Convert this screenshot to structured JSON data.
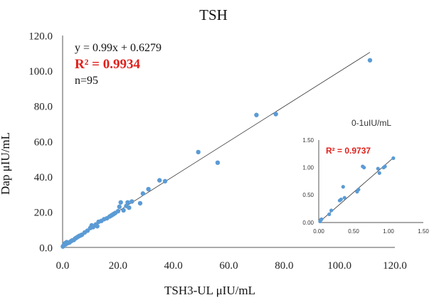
{
  "chart_data": [
    {
      "type": "scatter",
      "title": "TSH",
      "xlabel": "TSH3-UL  μIU/mL",
      "ylabel": "Dap  μIU/mL",
      "xlim": [
        0,
        120
      ],
      "ylim": [
        0,
        120
      ],
      "x_ticks": [
        "0.0",
        "20.0",
        "40.0",
        "60.0",
        "80.0",
        "100.0",
        "120.0"
      ],
      "y_ticks": [
        "0.0",
        "20.0",
        "40.0",
        "60.0",
        "80.0",
        "100.0",
        "120.0"
      ],
      "equation": "y = 0.99x + 0.6279",
      "r2_label": "R² = 0.9934",
      "n_label": "n=95",
      "trendline": {
        "slope": 0.99,
        "intercept": 0.6279,
        "x_range": [
          0,
          111
        ]
      },
      "colors": {
        "points": "#5b9bd5",
        "r2": "#e0201b",
        "trendline": "#333333"
      },
      "series": [
        {
          "name": "TSH",
          "x": [
            0.1,
            0.3,
            0.5,
            0.8,
            1.0,
            1.2,
            1.5,
            2.0,
            2.5,
            3.0,
            3.5,
            4.0,
            4.5,
            5.0,
            5.5,
            6.0,
            6.5,
            7.0,
            8.0,
            9.0,
            10.0,
            10.5,
            11.0,
            12.0,
            12.5,
            13.0,
            14.0,
            15.0,
            16.0,
            17.0,
            17.5,
            18.0,
            18.5,
            19.0,
            20.0,
            20.5,
            21.0,
            22.0,
            23.0,
            23.5,
            24.0,
            25.0,
            28.0,
            29.0,
            31.0,
            35.0,
            37.0,
            49.0,
            56.0,
            70.0,
            77.0,
            111.0
          ],
          "y": [
            0.5,
            0.8,
            1.5,
            2.0,
            2.5,
            1.8,
            3.0,
            2.5,
            2.8,
            3.5,
            4.0,
            4.2,
            5.0,
            5.5,
            6.0,
            6.5,
            6.8,
            7.2,
            8.5,
            9.5,
            11.0,
            12.5,
            11.5,
            13.0,
            12.0,
            14.5,
            15.0,
            16.0,
            16.5,
            17.5,
            18.0,
            18.5,
            19.0,
            19.5,
            20.5,
            23.0,
            25.5,
            21.0,
            23.5,
            25.5,
            22.5,
            26.0,
            25.0,
            30.5,
            33.0,
            38.0,
            37.5,
            54.0,
            48.0,
            75.0,
            75.5,
            106.0
          ]
        }
      ]
    },
    {
      "type": "scatter",
      "title": "0-1uIU/mL",
      "xlim": [
        0,
        1.5
      ],
      "ylim": [
        0,
        1.5
      ],
      "x_ticks": [
        "0.00",
        "0.50",
        "1.00",
        "1.50"
      ],
      "y_ticks": [
        "0.00",
        "0.50",
        "1.00",
        "1.50"
      ],
      "r2_label": "R² = 0.9737",
      "trendline": {
        "slope": 1.1,
        "intercept": 0.0,
        "x_range": [
          0.02,
          1.07
        ]
      },
      "series": [
        {
          "name": "0-1uIU/mL",
          "x": [
            0.02,
            0.03,
            0.04,
            0.15,
            0.18,
            0.3,
            0.32,
            0.35,
            0.37,
            0.55,
            0.57,
            0.63,
            0.65,
            0.85,
            0.87,
            0.93,
            0.95,
            1.07
          ],
          "y": [
            0.02,
            0.05,
            0.06,
            0.15,
            0.22,
            0.4,
            0.42,
            0.65,
            0.45,
            0.56,
            0.6,
            1.02,
            1.0,
            0.98,
            0.9,
            1.0,
            1.02,
            1.17
          ]
        }
      ]
    }
  ]
}
